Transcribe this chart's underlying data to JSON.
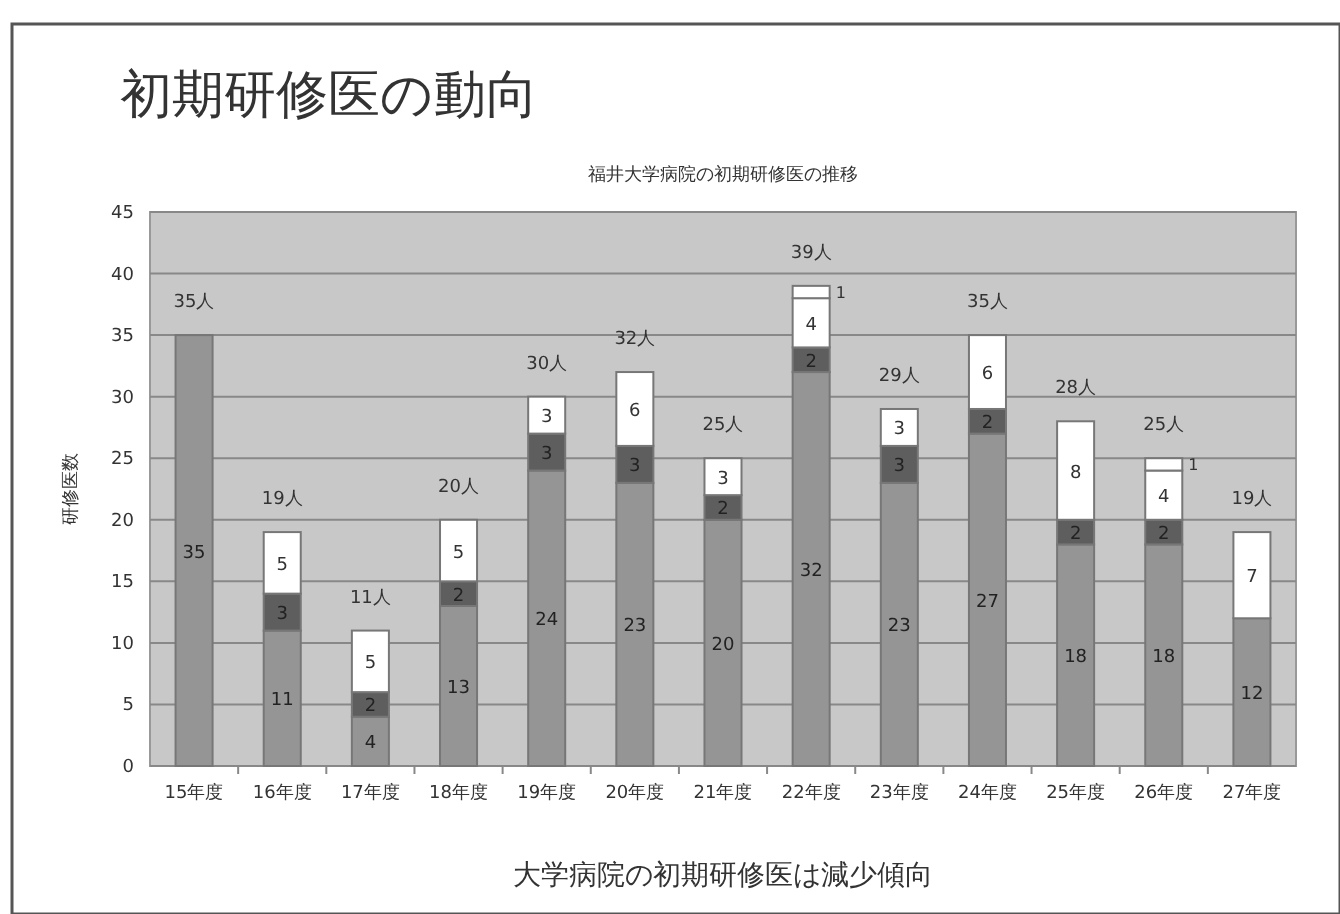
{
  "chart_data": {
    "type": "bar",
    "title": "初期研修医の動向",
    "subtitle": "福井大学病院の初期研修医の推移",
    "ylabel": "研修医数",
    "annotations": [
      "大学病院の初期研修医は減少傾向"
    ],
    "categories": [
      "15年度",
      "16年度",
      "17年度",
      "18年度",
      "19年度",
      "20年度",
      "21年度",
      "22年度",
      "23年度",
      "24年度",
      "25年度",
      "26年度",
      "27年度"
    ],
    "stacked": true,
    "data_labels": true,
    "grid": "y",
    "ylim": [
      0,
      45
    ],
    "yticks": [
      0,
      5,
      10,
      15,
      20,
      25,
      30,
      35,
      40,
      45
    ],
    "series": [
      {
        "color": "#959595",
        "values": [
          35,
          11,
          4,
          13,
          24,
          23,
          20,
          32,
          23,
          27,
          18,
          18,
          12
        ]
      },
      {
        "color": "#5e5e5e",
        "values": [
          null,
          3,
          2,
          2,
          3,
          3,
          2,
          2,
          3,
          2,
          2,
          2,
          null
        ]
      },
      {
        "color": "#ffffff",
        "values": [
          null,
          5,
          5,
          5,
          3,
          6,
          3,
          4,
          3,
          6,
          8,
          4,
          7
        ]
      },
      {
        "color": "#ffffff",
        "values": [
          null,
          null,
          null,
          null,
          null,
          null,
          null,
          1,
          null,
          null,
          null,
          1,
          null
        ]
      }
    ],
    "totals": [
      "35人",
      "19人",
      "11人",
      "20人",
      "30人",
      "32人",
      "25人",
      "39人",
      "29人",
      "35人",
      "28人",
      "25人",
      "19人"
    ]
  }
}
